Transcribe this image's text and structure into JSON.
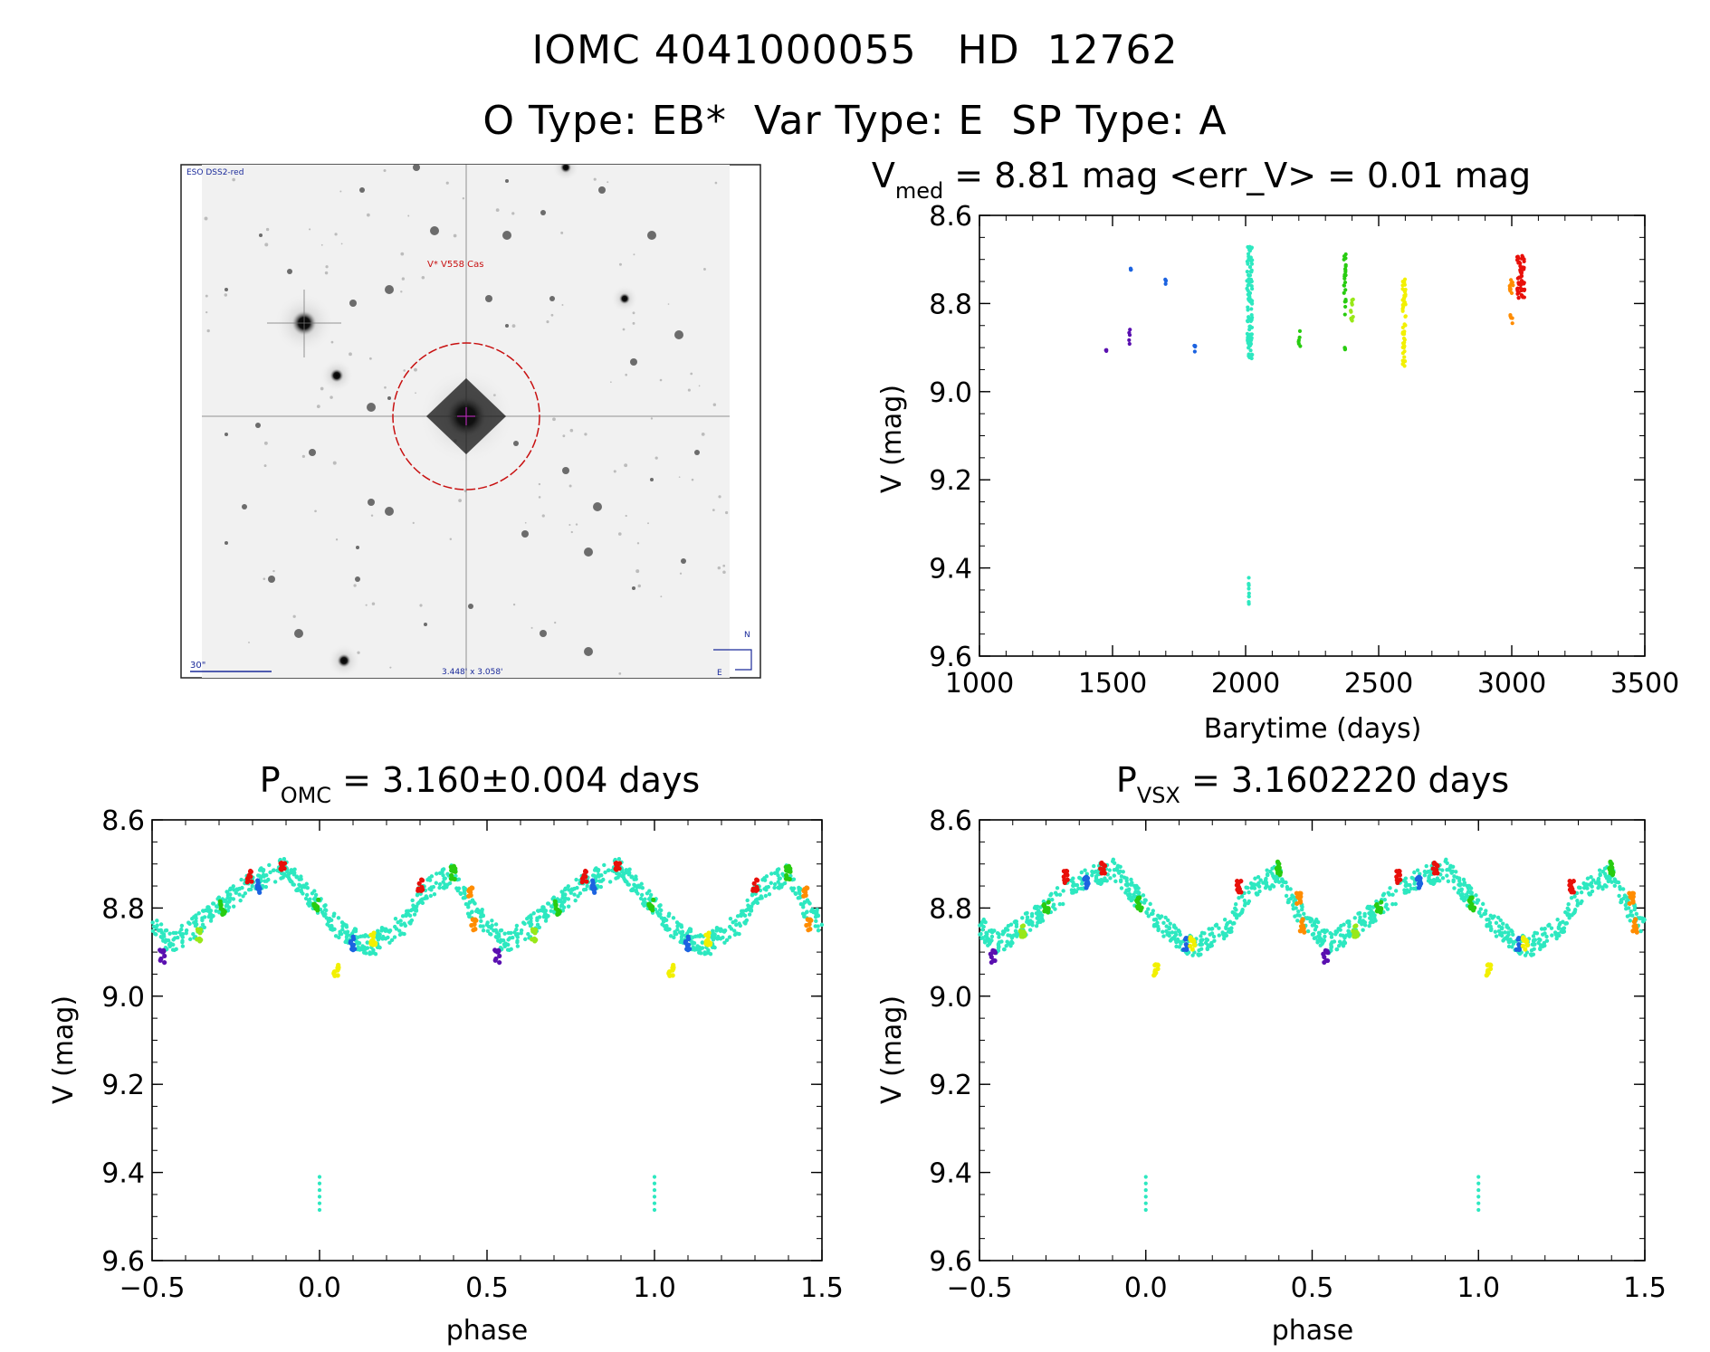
{
  "header": {
    "line1": "IOMC 4041000055   HD  12762",
    "line2": "O Type: EB*  Var Type: E  SP Type: A"
  },
  "finder": {
    "survey_label": "ESO DSS2-red",
    "star_label": "V* V558 Cas",
    "scale_label": "30\"",
    "fov_label": "3.448' x 3.058'",
    "north_label": "N",
    "east_label": "E"
  },
  "colors": {
    "purple": "#5a10b0",
    "blue": "#1c63e0",
    "cyan": "#2de8c0",
    "green": "#28cc10",
    "yellowgreen": "#98e818",
    "yellow": "#f2f000",
    "orange": "#ff8c00",
    "red": "#e8100a"
  },
  "chart_data": [
    {
      "id": "lightcurve",
      "type": "scatter",
      "title_main": "V",
      "title_sub": "med",
      "title_rest": " = 8.81 mag <err_V> = 0.01 mag",
      "xlabel": "Barytime (days)",
      "ylabel": "V (mag)",
      "xlim": [
        1000,
        3500
      ],
      "ylim": [
        9.6,
        8.6
      ],
      "xticks": [
        "1000",
        "1500",
        "2000",
        "2500",
        "3000",
        "3500"
      ],
      "yticks": [
        "8.6",
        "8.8",
        "9.0",
        "9.2",
        "9.4",
        "9.6"
      ],
      "groups": [
        {
          "color": "purple",
          "x_range": [
            1475,
            1478
          ],
          "y_range": [
            8.905,
            8.91
          ]
        },
        {
          "color": "purple",
          "x_range": [
            1562,
            1566
          ],
          "y_range": [
            8.855,
            8.895
          ]
        },
        {
          "color": "blue",
          "x_range": [
            1568,
            1570
          ],
          "y_range": [
            8.72,
            8.725
          ]
        },
        {
          "color": "blue",
          "x_range": [
            1698,
            1704
          ],
          "y_range": [
            8.74,
            8.76
          ]
        },
        {
          "color": "blue",
          "x_range": [
            1807,
            1811
          ],
          "y_range": [
            8.895,
            8.91
          ]
        },
        {
          "color": "cyan",
          "x_range": [
            2005,
            2025
          ],
          "y_range": [
            8.67,
            8.925
          ]
        },
        {
          "color": "cyan",
          "x_range": [
            2011,
            2013
          ],
          "y_range": [
            9.41,
            9.485
          ]
        },
        {
          "color": "green",
          "x_range": [
            2198,
            2206
          ],
          "y_range": [
            8.86,
            8.9
          ]
        },
        {
          "color": "green",
          "x_range": [
            2369,
            2377
          ],
          "y_range": [
            8.68,
            8.83
          ]
        },
        {
          "color": "green",
          "x_range": [
            2372,
            2374
          ],
          "y_range": [
            8.9,
            8.905
          ]
        },
        {
          "color": "yellowgreen",
          "x_range": [
            2395,
            2405
          ],
          "y_range": [
            8.79,
            8.845
          ]
        },
        {
          "color": "yellow",
          "x_range": [
            2590,
            2602
          ],
          "y_range": [
            8.745,
            8.955
          ]
        },
        {
          "color": "orange",
          "x_range": [
            2990,
            3005
          ],
          "y_range": [
            8.745,
            8.78
          ]
        },
        {
          "color": "orange",
          "x_range": [
            2993,
            3003
          ],
          "y_range": [
            8.825,
            8.85
          ]
        },
        {
          "color": "red",
          "x_range": [
            3020,
            3048
          ],
          "y_range": [
            8.69,
            8.79
          ]
        }
      ]
    },
    {
      "id": "phase_omc",
      "type": "scatter",
      "title_main": "P",
      "title_sub": "OMC",
      "title_rest": " = 3.160±0.004 days",
      "period_days": 3.16,
      "xlabel": "phase",
      "ylabel": "V (mag)",
      "xlim": [
        -0.5,
        1.5
      ],
      "ylim": [
        9.6,
        8.6
      ],
      "xticks": [
        "−0.5",
        "0.0",
        "0.5",
        "1.0",
        "1.5"
      ],
      "yticks": [
        "8.6",
        "8.8",
        "9.0",
        "9.2",
        "9.4",
        "9.6"
      ],
      "curve": {
        "phase": [
          0.0,
          0.05,
          0.1,
          0.15,
          0.2,
          0.25,
          0.3,
          0.4,
          0.45,
          0.55,
          0.6,
          0.7,
          0.8,
          0.9,
          1.0
        ],
        "mag": [
          8.8,
          8.84,
          8.87,
          8.89,
          8.86,
          8.84,
          8.77,
          8.72,
          8.8,
          8.88,
          8.86,
          8.8,
          8.74,
          8.71,
          8.8
        ]
      },
      "faint_points": {
        "phase": 0.0,
        "mag_range": [
          9.41,
          9.485
        ]
      },
      "color_groups": [
        {
          "color": "red",
          "phase": 0.89,
          "mag": 8.71
        },
        {
          "color": "red",
          "phase": 0.79,
          "mag": 8.73
        },
        {
          "color": "red",
          "phase": 0.3,
          "mag": 8.75
        },
        {
          "color": "blue",
          "phase": 0.82,
          "mag": 8.75
        },
        {
          "color": "blue",
          "phase": 0.1,
          "mag": 8.88
        },
        {
          "color": "green",
          "phase": 0.99,
          "mag": 8.79
        },
        {
          "color": "green",
          "phase": 0.71,
          "mag": 8.8
        },
        {
          "color": "green",
          "phase": 0.4,
          "mag": 8.72
        },
        {
          "color": "yellowgreen",
          "phase": 0.64,
          "mag": 8.86
        },
        {
          "color": "yellow",
          "phase": 0.16,
          "mag": 8.87
        },
        {
          "color": "yellow",
          "phase": 0.05,
          "mag": 8.94
        },
        {
          "color": "orange",
          "phase": 0.45,
          "mag": 8.76
        },
        {
          "color": "orange",
          "phase": 0.46,
          "mag": 8.84
        },
        {
          "color": "purple",
          "phase": 0.53,
          "mag": 8.91
        }
      ]
    },
    {
      "id": "phase_vsx",
      "type": "scatter",
      "title_main": "P",
      "title_sub": "VSX",
      "title_rest": " = 3.1602220 days",
      "period_days": 3.160222,
      "xlabel": "phase",
      "ylabel": "V (mag)",
      "xlim": [
        -0.5,
        1.5
      ],
      "ylim": [
        9.6,
        8.6
      ],
      "xticks": [
        "−0.5",
        "0.0",
        "0.5",
        "1.0",
        "1.5"
      ],
      "yticks": [
        "8.6",
        "8.8",
        "9.0",
        "9.2",
        "9.4",
        "9.6"
      ],
      "curve": {
        "phase": [
          0.0,
          0.05,
          0.1,
          0.15,
          0.2,
          0.25,
          0.3,
          0.4,
          0.45,
          0.55,
          0.6,
          0.7,
          0.8,
          0.9,
          1.0
        ],
        "mag": [
          8.8,
          8.84,
          8.87,
          8.89,
          8.86,
          8.84,
          8.77,
          8.72,
          8.8,
          8.88,
          8.86,
          8.8,
          8.74,
          8.71,
          8.8
        ]
      },
      "faint_points": {
        "phase": 0.0,
        "mag_range": [
          9.41,
          9.485
        ]
      },
      "color_groups": [
        {
          "color": "red",
          "phase": 0.87,
          "mag": 8.71
        },
        {
          "color": "red",
          "phase": 0.76,
          "mag": 8.73
        },
        {
          "color": "red",
          "phase": 0.28,
          "mag": 8.75
        },
        {
          "color": "blue",
          "phase": 0.82,
          "mag": 8.74
        },
        {
          "color": "blue",
          "phase": 0.12,
          "mag": 8.88
        },
        {
          "color": "green",
          "phase": 0.98,
          "mag": 8.79
        },
        {
          "color": "green",
          "phase": 0.7,
          "mag": 8.8
        },
        {
          "color": "green",
          "phase": 0.4,
          "mag": 8.71
        },
        {
          "color": "yellowgreen",
          "phase": 0.63,
          "mag": 8.85
        },
        {
          "color": "yellow",
          "phase": 0.14,
          "mag": 8.88
        },
        {
          "color": "yellow",
          "phase": 0.03,
          "mag": 8.94
        },
        {
          "color": "orange",
          "phase": 0.46,
          "mag": 8.78
        },
        {
          "color": "orange",
          "phase": 0.47,
          "mag": 8.84
        },
        {
          "color": "purple",
          "phase": 0.54,
          "mag": 8.91
        }
      ]
    }
  ]
}
